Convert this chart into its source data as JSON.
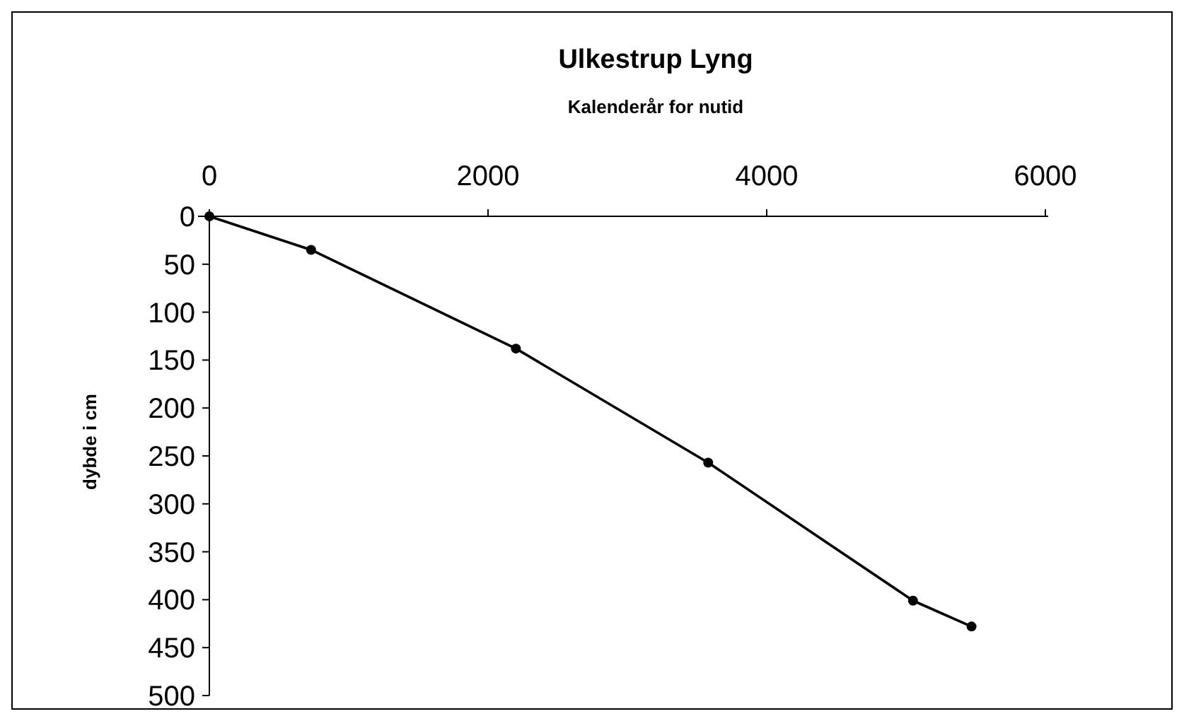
{
  "chart_data": {
    "type": "line",
    "title": "Ulkestrup Lyng",
    "xlabel": "Kalenderår for nutid",
    "ylabel": "dybde i cm",
    "x": [
      0,
      730,
      2200,
      3580,
      5050,
      5470
    ],
    "series": [
      {
        "color": "#000000",
        "values": [
          0,
          35,
          138,
          257,
          401,
          428
        ]
      }
    ],
    "xlim": [
      0,
      6000
    ],
    "xticks": [
      0,
      2000,
      4000,
      6000
    ],
    "ylim": [
      500,
      0
    ],
    "yticks": [
      0,
      50,
      100,
      150,
      200,
      250,
      300,
      350,
      400,
      450,
      500
    ],
    "marker": "circle",
    "line_style": "solid",
    "grid": false
  }
}
